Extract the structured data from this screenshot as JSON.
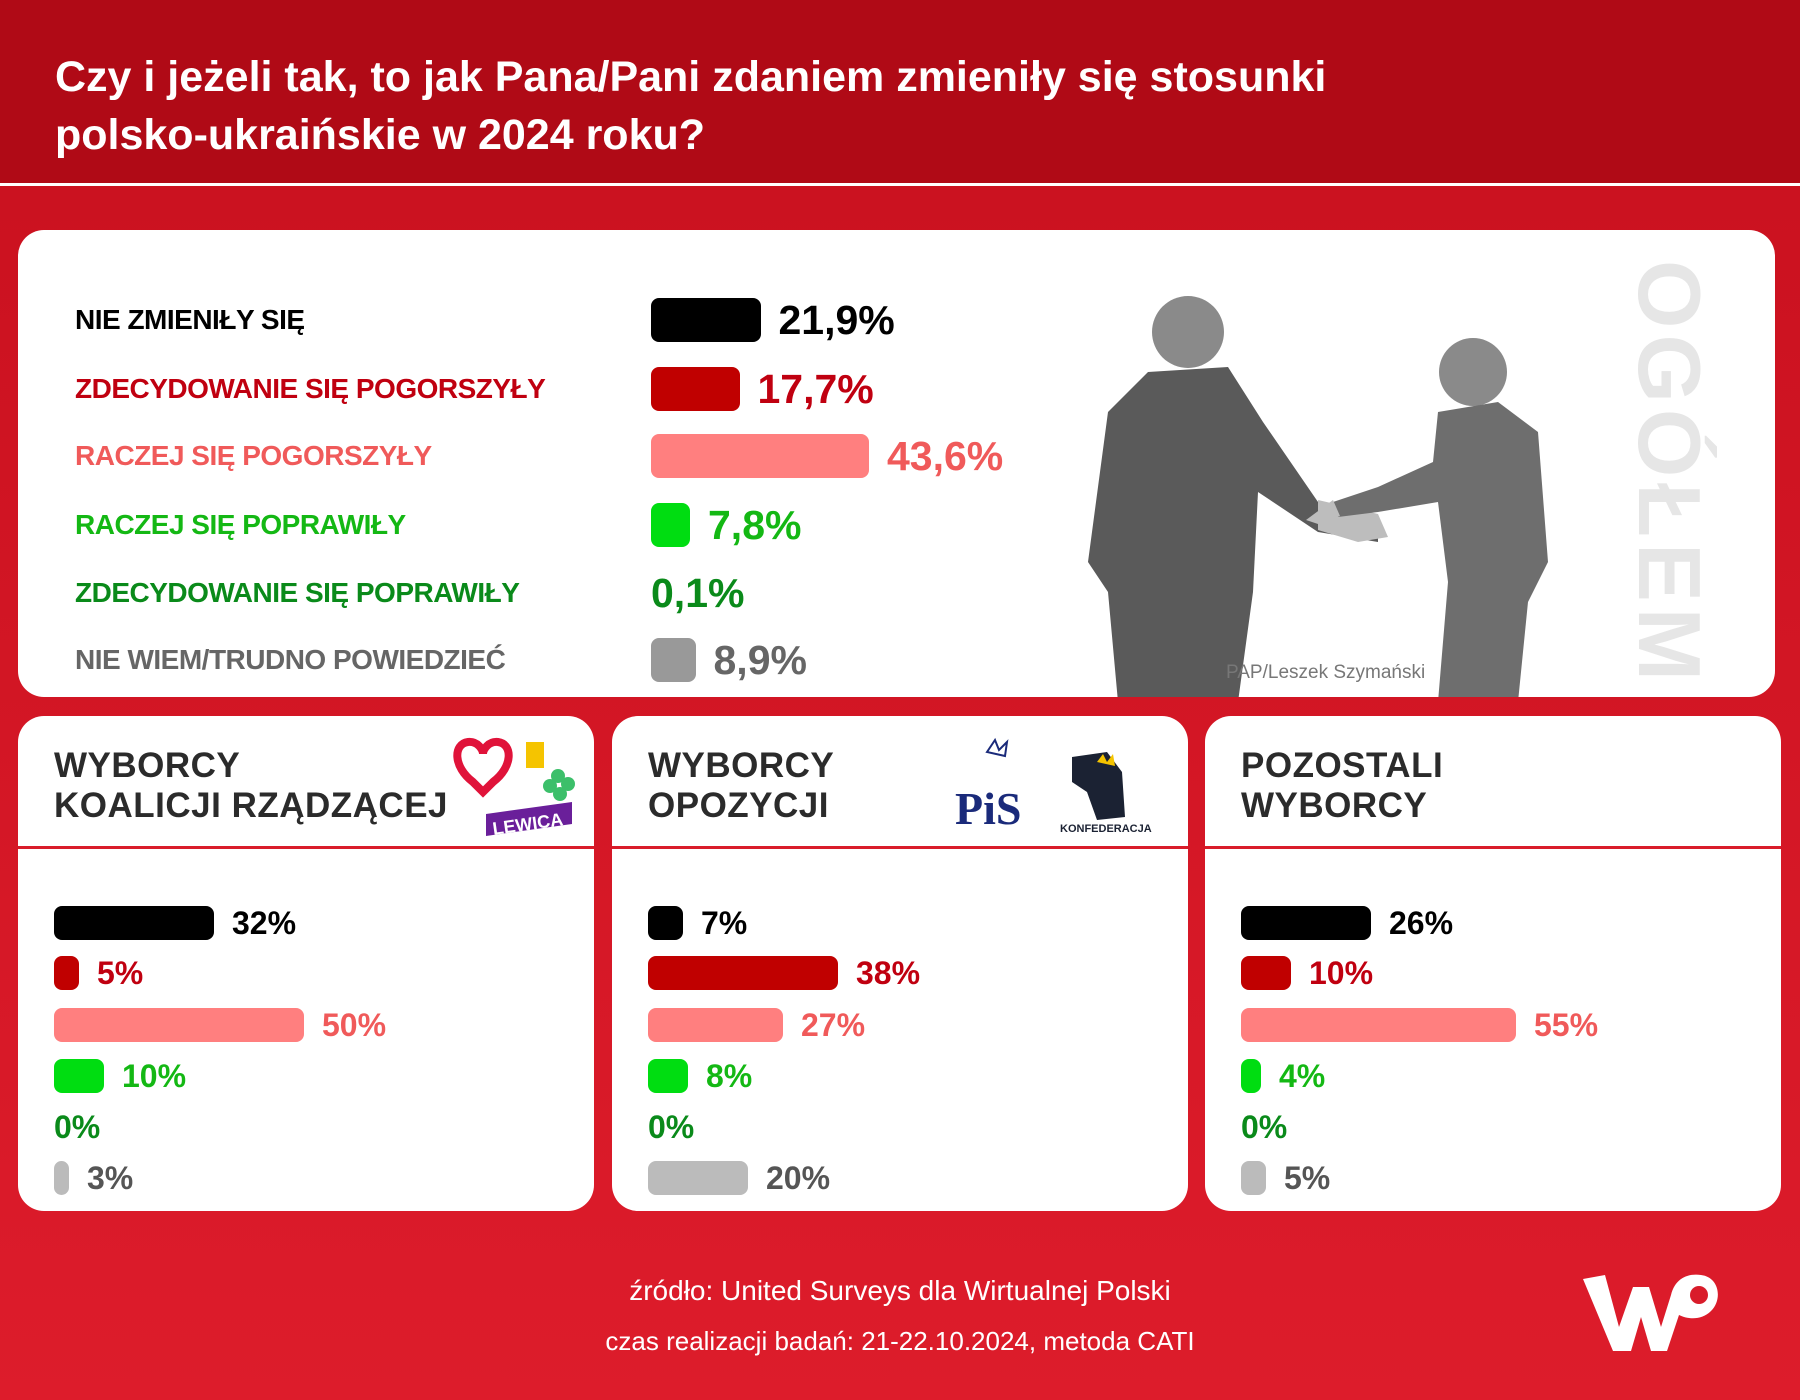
{
  "header": {
    "title_line1": "Czy i jeżeli tak, to jak Pana/Pani zdaniem zmieniły się stosunki",
    "title_line2": "polsko-ukraińskie w 2024 roku?"
  },
  "colors": {
    "black": "#000000",
    "dark_red": "#c00000",
    "pink": "#ff7f7f",
    "green": "#00dd11",
    "dark_green": "#0a8a1a",
    "gray": "#999999",
    "light_gray": "#bbbbbb",
    "background_red": "#d91c2a"
  },
  "overall": {
    "side_label": "OGÓŁEM",
    "photo_credit": "PAP/Leszek Szymański",
    "rows": [
      {
        "label": "NIE ZMIENIŁY SIĘ",
        "value": 21.9,
        "display": "21,9%",
        "bar_color": "#000000",
        "text_color": "#000000"
      },
      {
        "label": "ZDECYDOWANIE SIĘ POGORSZYŁY",
        "value": 17.7,
        "display": "17,7%",
        "bar_color": "#c00000",
        "text_color": "#c00010"
      },
      {
        "label": "RACZEJ SIĘ POGORSZYŁY",
        "value": 43.6,
        "display": "43,6%",
        "bar_color": "#ff7f7f",
        "text_color": "#f05a5a"
      },
      {
        "label": "RACZEJ SIĘ POPRAWIŁY",
        "value": 7.8,
        "display": "7,8%",
        "bar_color": "#00dd11",
        "text_color": "#14b814"
      },
      {
        "label": "ZDECYDOWANIE SIĘ POPRAWIŁY",
        "value": 0.1,
        "display": "0,1%",
        "bar_color": "#0a8a1a",
        "text_color": "#0a8a1a"
      },
      {
        "label": "NIE WIEM/TRUDNO POWIEDZIEĆ",
        "value": 8.9,
        "display": "8,9%",
        "bar_color": "#999999",
        "text_color": "#666666"
      }
    ]
  },
  "groups": [
    {
      "title_line1": "WYBORCY",
      "title_line2": "KOALICJI RZĄDZĄCEJ",
      "logos": [
        "ko-heart-logo",
        "trzecia-droga-logo",
        "lewica-logo"
      ],
      "logo_text": "LEWICA",
      "values": [
        32,
        5,
        50,
        10,
        0,
        3
      ],
      "display": [
        "32%",
        "5%",
        "50%",
        "10%",
        "0%",
        "3%"
      ]
    },
    {
      "title_line1": "WYBORCY",
      "title_line2": "OPOZYCJI",
      "logos": [
        "pis-logo",
        "konfederacja-logo"
      ],
      "logo_text": "PiS",
      "logo_text2": "KONFEDERACJA",
      "values": [
        7,
        38,
        27,
        8,
        0,
        20
      ],
      "display": [
        "7%",
        "38%",
        "27%",
        "8%",
        "0%",
        "20%"
      ]
    },
    {
      "title_line1": "POZOSTALI",
      "title_line2": "WYBORCY",
      "logos": [],
      "values": [
        26,
        10,
        55,
        4,
        0,
        5
      ],
      "display": [
        "26%",
        "10%",
        "55%",
        "4%",
        "0%",
        "5%"
      ]
    }
  ],
  "group_bar_colors": [
    "#000000",
    "#c00000",
    "#ff7f7f",
    "#00dd11",
    "#0a8a1a",
    "#bbbbbb"
  ],
  "group_text_colors": [
    "#000000",
    "#c00010",
    "#f05a5a",
    "#14b814",
    "#0a8a1a",
    "#555555"
  ],
  "footer": {
    "source": "źródło: United Surveys dla Wirtualnej Polski",
    "method": "czas realizacji badań: 21-22.10.2024, metoda CATI",
    "logo": "WP"
  }
}
